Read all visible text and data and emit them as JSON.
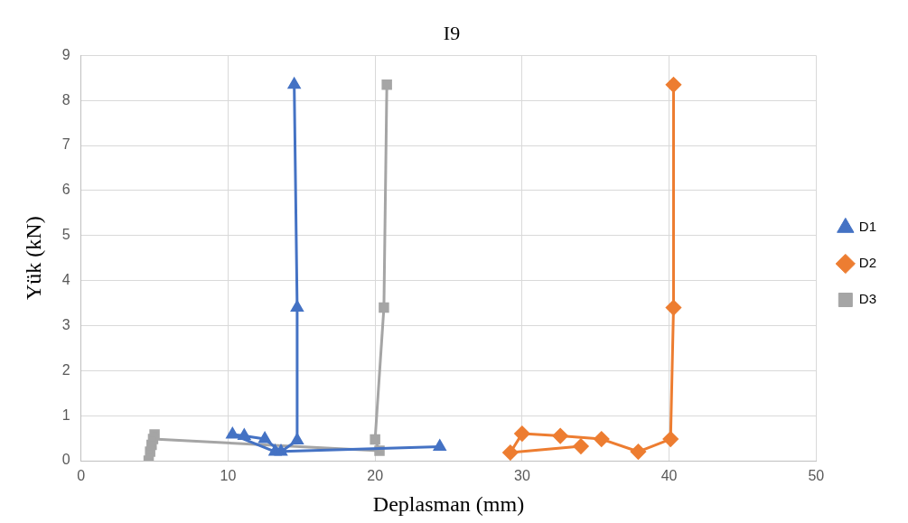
{
  "chart_data": {
    "type": "line",
    "title": "I9",
    "xlabel": "Deplasman (mm)",
    "ylabel": "Yük (kN)",
    "xlim": [
      0,
      50
    ],
    "xticks": [
      0,
      10,
      20,
      30,
      40,
      50
    ],
    "ylim": [
      0,
      9
    ],
    "yticks": [
      0,
      1,
      2,
      3,
      4,
      5,
      6,
      7,
      8,
      9
    ],
    "grid": true,
    "legend": "right",
    "line_style": "solid",
    "series": [
      {
        "name": "D1",
        "color": "#4472c4",
        "marker": "triangle",
        "x": [
          24.4,
          13.2,
          10.3,
          11.1,
          12.5,
          13.6,
          14.7,
          14.7,
          14.5
        ],
        "values": [
          0.31,
          0.2,
          0.58,
          0.55,
          0.48,
          0.2,
          0.45,
          3.4,
          8.35
        ]
      },
      {
        "name": "D2",
        "color": "#ed7d31",
        "marker": "diamond",
        "x": [
          34,
          29.2,
          30,
          32.6,
          35.4,
          37.9,
          40.1,
          40.3,
          40.3
        ],
        "values": [
          0.32,
          0.18,
          0.6,
          0.55,
          0.48,
          0.2,
          0.48,
          3.4,
          8.35
        ]
      },
      {
        "name": "D3",
        "color": "#a5a5a5",
        "marker": "square",
        "x": [
          4.6,
          4.7,
          4.8,
          5.0,
          4.9,
          20.3,
          20,
          20.6,
          20.8
        ],
        "values": [
          0,
          0.2,
          0.35,
          0.58,
          0.48,
          0.22,
          0.47,
          3.4,
          8.35
        ]
      }
    ]
  }
}
